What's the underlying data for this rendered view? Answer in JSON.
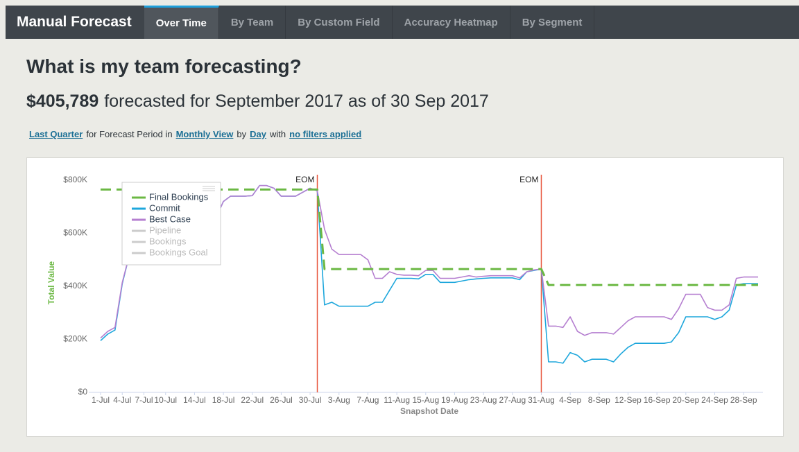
{
  "nav": {
    "title": "Manual Forecast",
    "tabs": [
      "Over Time",
      "By Team",
      "By Custom Field",
      "Accuracy Heatmap",
      "By Segment"
    ],
    "active": 0
  },
  "heading": "What is my team forecasting?",
  "summary": {
    "amount": "$405,789",
    "text": "forecasted for September 2017 as of 30 Sep 2017"
  },
  "filter_line": [
    "Last Quarter",
    "for Forecast Period in",
    "Monthly View",
    "by",
    "Day",
    "with",
    "no filters applied"
  ],
  "chart_data": {
    "type": "line",
    "xlabel": "Snapshot Date",
    "ylabel": "Total Value",
    "categories": [
      "1-Jul",
      null,
      null,
      "4-Jul",
      null,
      null,
      "7-Jul",
      null,
      null,
      "10-Jul",
      null,
      null,
      null,
      "14-Jul",
      null,
      null,
      null,
      "18-Jul",
      null,
      null,
      null,
      "22-Jul",
      null,
      null,
      null,
      "26-Jul",
      null,
      null,
      null,
      "30-Jul",
      null,
      null,
      null,
      "3-Aug",
      null,
      null,
      null,
      "7-Aug",
      null,
      null,
      null,
      "11-Aug",
      null,
      null,
      null,
      "15-Aug",
      null,
      null,
      null,
      "19-Aug",
      null,
      null,
      null,
      "23-Aug",
      null,
      null,
      null,
      "27-Aug",
      null,
      null,
      null,
      "31-Aug",
      null,
      null,
      null,
      "4-Sep",
      null,
      null,
      null,
      "8-Sep",
      null,
      null,
      null,
      "12-Sep",
      null,
      null,
      null,
      "16-Sep",
      null,
      null,
      null,
      "20-Sep",
      null,
      null,
      null,
      "24-Sep",
      null,
      null,
      null,
      "28-Sep",
      null,
      null
    ],
    "series": [
      {
        "name": "Final Bookings",
        "color": "#6bb843",
        "dashed": true,
        "values": [
          765000,
          765000,
          765000,
          765000,
          765000,
          765000,
          765000,
          765000,
          765000,
          765000,
          765000,
          765000,
          765000,
          765000,
          765000,
          765000,
          765000,
          765000,
          765000,
          765000,
          765000,
          765000,
          765000,
          765000,
          765000,
          765000,
          765000,
          765000,
          765000,
          765000,
          765000,
          465000,
          465000,
          465000,
          465000,
          465000,
          465000,
          465000,
          465000,
          465000,
          465000,
          465000,
          465000,
          465000,
          465000,
          465000,
          465000,
          465000,
          465000,
          465000,
          465000,
          465000,
          465000,
          465000,
          465000,
          465000,
          465000,
          465000,
          465000,
          465000,
          465000,
          465000,
          405000,
          405000,
          405000,
          405000,
          405000,
          405000,
          405000,
          405000,
          405000,
          405000,
          405000,
          405000,
          405000,
          405000,
          405000,
          405000,
          405000,
          405000,
          405000,
          405000,
          405000,
          405000,
          405000,
          405000,
          405000,
          405000,
          405000,
          405000,
          405000,
          405000
        ]
      },
      {
        "name": "Commit",
        "color": "#1ea7dc",
        "values": [
          195000,
          220000,
          235000,
          410000,
          520000,
          580000,
          610000,
          620000,
          630000,
          640000,
          645000,
          650000,
          650000,
          650000,
          652000,
          655000,
          660000,
          720000,
          740000,
          740000,
          740000,
          742000,
          780000,
          780000,
          770000,
          740000,
          740000,
          740000,
          755000,
          770000,
          760000,
          330000,
          340000,
          325000,
          325000,
          325000,
          325000,
          325000,
          340000,
          340000,
          385000,
          430000,
          430000,
          430000,
          428000,
          445000,
          445000,
          415000,
          415000,
          415000,
          420000,
          425000,
          428000,
          430000,
          432000,
          432000,
          432000,
          432000,
          425000,
          455000,
          460000,
          465000,
          115000,
          115000,
          110000,
          150000,
          140000,
          115000,
          125000,
          125000,
          125000,
          115000,
          145000,
          170000,
          185000,
          185000,
          185000,
          185000,
          185000,
          190000,
          225000,
          285000,
          285000,
          285000,
          285000,
          275000,
          285000,
          310000,
          405000,
          410000,
          410000,
          410000
        ]
      },
      {
        "name": "Best Case",
        "color": "#b57fd0",
        "values": [
          205000,
          230000,
          245000,
          415000,
          520000,
          580000,
          610000,
          620000,
          630000,
          640000,
          645000,
          650000,
          650000,
          650000,
          652000,
          655000,
          660000,
          720000,
          740000,
          740000,
          740000,
          742000,
          780000,
          780000,
          770000,
          740000,
          740000,
          740000,
          755000,
          770000,
          760000,
          615000,
          540000,
          520000,
          520000,
          520000,
          520000,
          500000,
          430000,
          430000,
          455000,
          445000,
          442000,
          442000,
          440000,
          460000,
          460000,
          430000,
          430000,
          430000,
          435000,
          440000,
          435000,
          438000,
          440000,
          440000,
          440000,
          440000,
          432000,
          455000,
          462000,
          465000,
          250000,
          250000,
          245000,
          285000,
          230000,
          215000,
          225000,
          225000,
          225000,
          220000,
          245000,
          270000,
          285000,
          285000,
          285000,
          285000,
          285000,
          275000,
          315000,
          370000,
          370000,
          370000,
          320000,
          310000,
          310000,
          330000,
          430000,
          435000,
          435000,
          435000
        ]
      }
    ],
    "legend_inactive": [
      "Pipeline",
      "Bookings",
      "Bookings Goal"
    ],
    "annotations": [
      {
        "text": "EOM",
        "at": 30
      },
      {
        "text": "EOM",
        "at": 61
      }
    ],
    "annotation_color": "#e8553c",
    "ylim": [
      0,
      800000
    ],
    "yticks": [
      {
        "value": 0,
        "label": "$0"
      },
      {
        "value": 200000,
        "label": "$200K"
      },
      {
        "value": 400000,
        "label": "$400K"
      },
      {
        "value": 600000,
        "label": "$600K"
      },
      {
        "value": 800000,
        "label": "$800K"
      }
    ]
  }
}
